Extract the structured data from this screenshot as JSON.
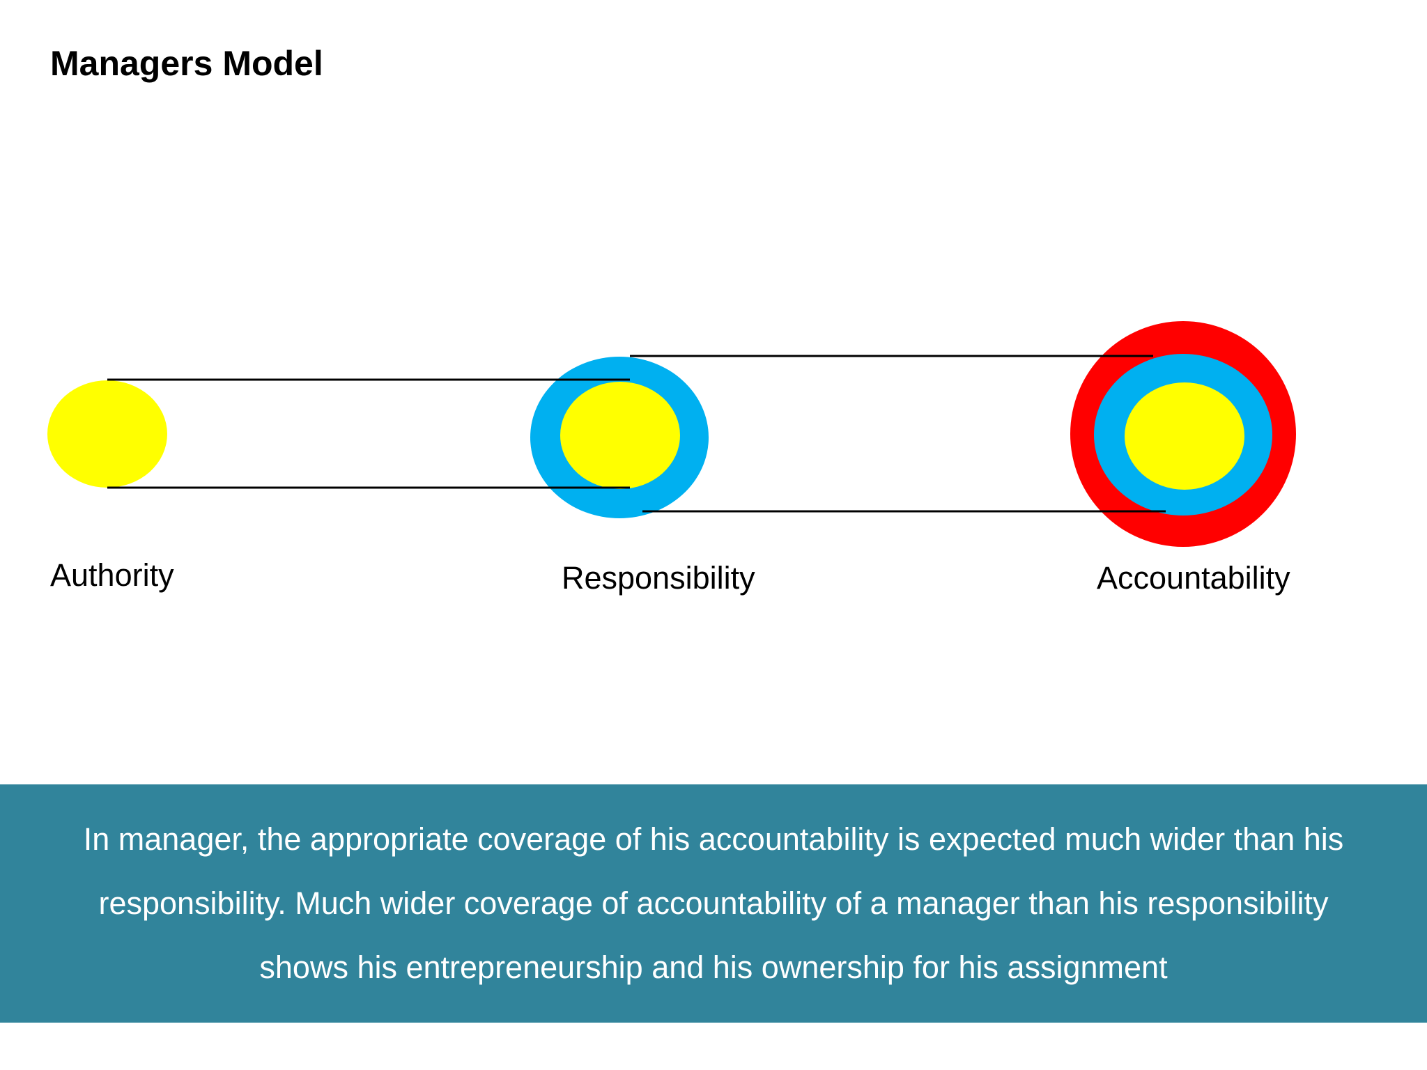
{
  "title": "Managers Model",
  "colors": {
    "authority": "#ffff00",
    "responsibility": "#00b0f0",
    "accountability": "#ff0000",
    "banner": "#31849b",
    "connector": "#000000"
  },
  "stages": [
    {
      "label": "Authority",
      "rings": [
        "authority"
      ]
    },
    {
      "label": "Responsibility",
      "rings": [
        "responsibility",
        "authority"
      ]
    },
    {
      "label": "Accountability",
      "rings": [
        "accountability",
        "responsibility",
        "authority"
      ]
    }
  ],
  "banner": {
    "text": "In manager, the appropriate coverage of his accountability is expected much wider than his responsibility. Much wider coverage of accountability of a manager than his responsibility shows his entrepreneurship and his ownership for his assignment"
  }
}
